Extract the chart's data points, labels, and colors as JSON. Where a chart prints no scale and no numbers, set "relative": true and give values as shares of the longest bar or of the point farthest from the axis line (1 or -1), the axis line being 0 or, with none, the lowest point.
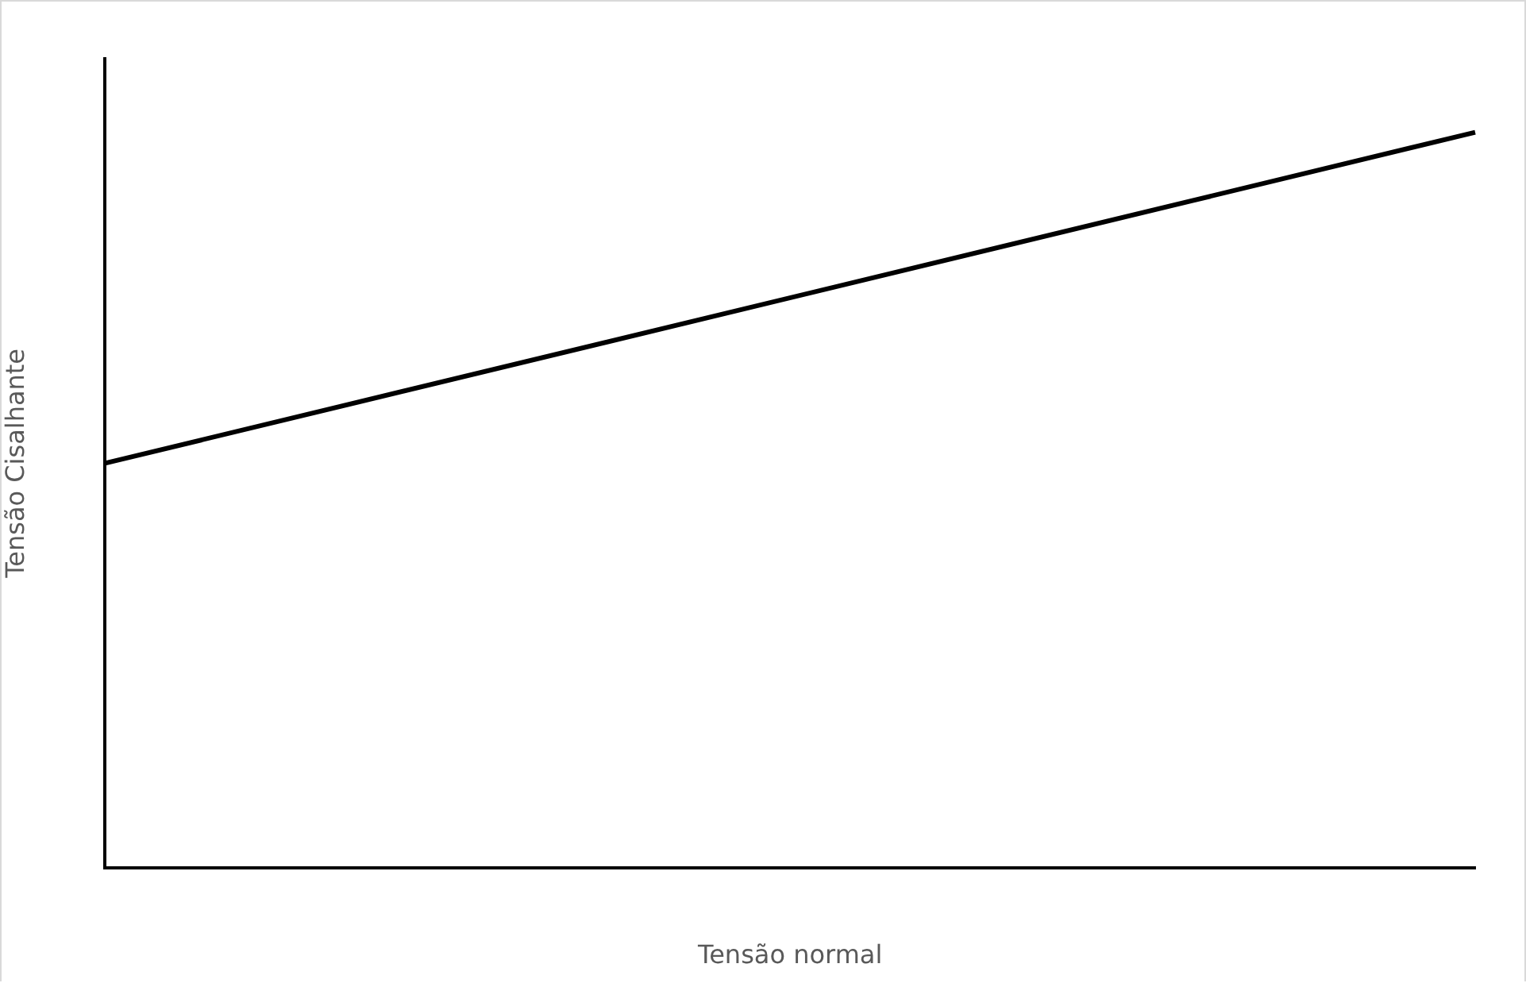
{
  "chart_data": {
    "type": "line",
    "xlabel": "Tensão normal",
    "ylabel": "Tensão Cisalhante",
    "relative": true,
    "categories": [
      null,
      null
    ],
    "series": [
      {
        "color": "#000000",
        "values": [
          0.55,
          1
        ]
      }
    ],
    "grid": false,
    "legend": false,
    "marker": "none",
    "line_style": "solid"
  }
}
